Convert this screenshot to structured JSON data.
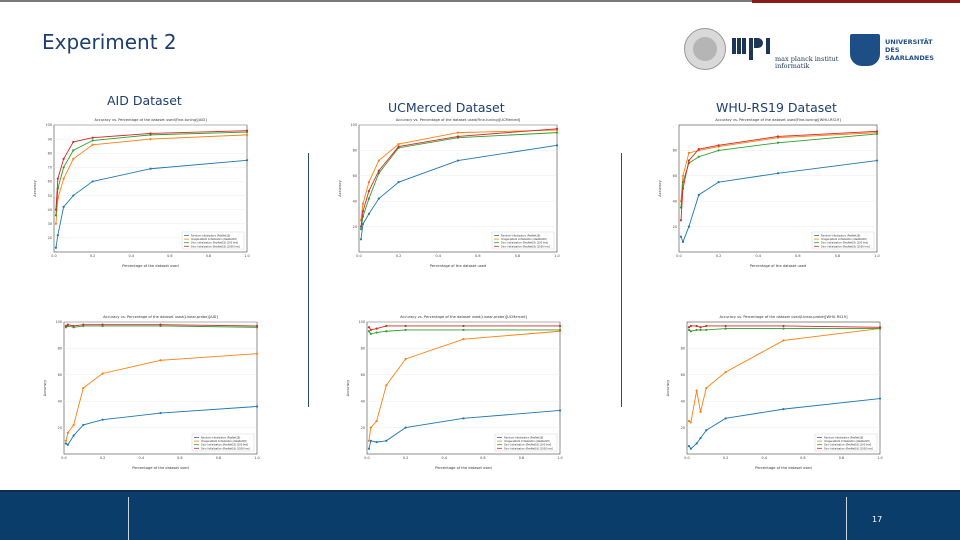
{
  "slide": {
    "title": "Experiment 2",
    "page_number": "17"
  },
  "logos": {
    "mpi_text_1": "max planck institut",
    "mpi_text_2": "informatik",
    "uds_line1": "UNIVERSITÄT",
    "uds_line2": "DES",
    "uds_line3": "SAARLANDES"
  },
  "datasets": {
    "aid": "AID Dataset",
    "ucm": "UCMerced Dataset",
    "whu": "WHU-RS19 Dataset"
  },
  "colors": {
    "random": "#1f77b4",
    "imagenet": "#ff7f0e",
    "dino100": "#2ca02c",
    "dino1000": "#d62728",
    "footer": "#0b3d6b",
    "title": "#1d3f6e"
  },
  "chart_data": [
    {
      "type": "line",
      "title": "Accuracy vs. Percentage of the dataset used(Fine-tuning)[AID]",
      "xlabel": "Percentage of the dataset used",
      "ylabel": "Accuracy",
      "xlim": [
        0,
        1.0
      ],
      "ylim": [
        10,
        100
      ],
      "xticks": [
        "0.0",
        "0.2",
        "0.4",
        "0.6",
        "0.8",
        "1.0"
      ],
      "yticks": [
        "20",
        "30",
        "40",
        "50",
        "60",
        "70",
        "80",
        "90",
        "100"
      ],
      "x": [
        0.01,
        0.02,
        0.05,
        0.1,
        0.2,
        0.5,
        1.0
      ],
      "series": [
        {
          "name": "Random Initialization (ResNet18)",
          "values": [
            13,
            22,
            42,
            50,
            60,
            69,
            75
          ]
        },
        {
          "name": "ImageneNet1 Initialization (ResNet18)",
          "values": [
            30,
            48,
            62,
            76,
            86,
            90,
            93
          ]
        },
        {
          "name": "Dino Initialization (ResNet18) [100 Ims]",
          "values": [
            36,
            55,
            70,
            82,
            89,
            93,
            95
          ]
        },
        {
          "name": "Dino Initialization (ResNet18) [1000 Ims]",
          "values": [
            40,
            62,
            76,
            88,
            91,
            94,
            96
          ]
        }
      ]
    },
    {
      "type": "line",
      "title": "Accuracy vs. Percentage of the dataset used(Fine-tuning)[UCMerced]",
      "xlabel": "Percentage of the dataset used",
      "ylabel": "Accuracy",
      "xlim": [
        0,
        1.0
      ],
      "ylim": [
        0,
        100
      ],
      "xticks": [
        "0.0",
        "0.2",
        "0.4",
        "0.6",
        "0.8",
        "1.0"
      ],
      "yticks": [
        "20",
        "40",
        "60",
        "80",
        "100"
      ],
      "x": [
        0.01,
        0.02,
        0.05,
        0.1,
        0.2,
        0.5,
        1.0
      ],
      "series": [
        {
          "name": "Random Initialization (ResNet18)",
          "values": [
            10,
            22,
            30,
            42,
            55,
            72,
            84
          ]
        },
        {
          "name": "ImageneNet1 Initialization (ResNet18)",
          "values": [
            25,
            38,
            55,
            72,
            85,
            94,
            96
          ]
        },
        {
          "name": "Dino Initialization (ResNet18) [100 Ims]",
          "values": [
            18,
            28,
            42,
            62,
            82,
            90,
            94
          ]
        },
        {
          "name": "Dino Initialization (ResNet18) [1000 Ims]",
          "values": [
            20,
            32,
            48,
            64,
            83,
            91,
            97
          ]
        }
      ]
    },
    {
      "type": "line",
      "title": "Accuracy vs. Percentage of the dataset used(Fine-tuning)[WHU-RS19]",
      "xlabel": "Percentage of the dataset used",
      "ylabel": "Accuracy",
      "xlim": [
        0,
        1.0
      ],
      "ylim": [
        0,
        100
      ],
      "xticks": [
        "0.0",
        "0.2",
        "0.4",
        "0.6",
        "0.8",
        "1.0"
      ],
      "yticks": [
        "20",
        "40",
        "60",
        "80"
      ],
      "x": [
        0.01,
        0.02,
        0.05,
        0.1,
        0.2,
        0.5,
        1.0
      ],
      "series": [
        {
          "name": "Random Initialization (ResNet18)",
          "values": [
            12,
            8,
            20,
            45,
            55,
            62,
            72
          ]
        },
        {
          "name": "ImageneNet1 Initialization (ResNet18)",
          "values": [
            40,
            60,
            78,
            80,
            83,
            90,
            94
          ]
        },
        {
          "name": "Dino Initialization (ResNet18) [100 Ims]",
          "values": [
            35,
            55,
            70,
            75,
            80,
            86,
            93
          ]
        },
        {
          "name": "Dino Initialization (ResNet18) [1000 Ims]",
          "values": [
            25,
            50,
            72,
            81,
            84,
            91,
            95
          ]
        }
      ]
    },
    {
      "type": "line",
      "title": "Accuracy vs. Percentage of the dataset used(Linear-probe)[AID]",
      "xlabel": "Percentage of the dataset used",
      "ylabel": "Accuracy",
      "xlim": [
        0,
        1.0
      ],
      "ylim": [
        0,
        100
      ],
      "xticks": [
        "0.0",
        "0.2",
        "0.4",
        "0.6",
        "0.8",
        "1.0"
      ],
      "yticks": [
        "20",
        "40",
        "60",
        "80",
        "100"
      ],
      "x": [
        0.01,
        0.02,
        0.05,
        0.1,
        0.2,
        0.5,
        1.0
      ],
      "series": [
        {
          "name": "Random Initialization (ResNet18)",
          "values": [
            8,
            7,
            14,
            22,
            26,
            31,
            36
          ]
        },
        {
          "name": "ImageneNet1 Initialization (ResNet18)",
          "values": [
            10,
            16,
            22,
            50,
            61,
            71,
            76
          ]
        },
        {
          "name": "Dino Initialization (ResNet18) [100 Ims]",
          "values": [
            96,
            97,
            96,
            97,
            97,
            97,
            96
          ]
        },
        {
          "name": "Dino Initialization (ResNet18) [1000 Ims]",
          "values": [
            97,
            98,
            97,
            98,
            98,
            98,
            97
          ]
        }
      ]
    },
    {
      "type": "line",
      "title": "Accuracy vs. Percentage of the dataset used(Linear-probe)[UCMerced]",
      "xlabel": "Percentage of the dataset used",
      "ylabel": "Accuracy",
      "xlim": [
        0,
        1.0
      ],
      "ylim": [
        0,
        100
      ],
      "xticks": [
        "0.0",
        "0.2",
        "0.4",
        "0.6",
        "0.8",
        "1.0"
      ],
      "yticks": [
        "20",
        "40",
        "60",
        "80",
        "100"
      ],
      "x": [
        0.01,
        0.02,
        0.05,
        0.1,
        0.2,
        0.5,
        1.0
      ],
      "series": [
        {
          "name": "Random Initialization (ResNet18)",
          "values": [
            4,
            10,
            9,
            10,
            20,
            27,
            33
          ]
        },
        {
          "name": "ImageneNet1 Initialization (ResNet18)",
          "values": [
            10,
            20,
            25,
            52,
            72,
            87,
            93
          ]
        },
        {
          "name": "Dino Initialization (ResNet18) [100 Ims]",
          "values": [
            93,
            91,
            92,
            93,
            94,
            94,
            94
          ]
        },
        {
          "name": "Dino Initialization (ResNet18) [1000 Ims]",
          "values": [
            96,
            94,
            95,
            97,
            97,
            97,
            97
          ]
        }
      ]
    },
    {
      "type": "line",
      "title": "Accuracy vs. Percentage of the dataset used(Linear-probe)[WHU-RS19]",
      "xlabel": "Percentage of the dataset used",
      "ylabel": "Accuracy",
      "xlim": [
        0,
        1.0
      ],
      "ylim": [
        0,
        100
      ],
      "xticks": [
        "0.0",
        "0.2",
        "0.4",
        "0.6",
        "0.8",
        "1.0"
      ],
      "yticks": [
        "20",
        "40",
        "60",
        "80"
      ],
      "x": [
        0.01,
        0.02,
        0.05,
        0.07,
        0.1,
        0.2,
        0.5,
        1.0
      ],
      "series": [
        {
          "name": "Random Initialization (ResNet18)",
          "values": [
            6,
            4,
            8,
            12,
            18,
            27,
            34,
            42
          ]
        },
        {
          "name": "ImageneNet1 Initialization (ResNet18)",
          "values": [
            25,
            24,
            48,
            32,
            50,
            62,
            86,
            95
          ]
        },
        {
          "name": "Dino Initialization (ResNet18) [100 Ims]",
          "values": [
            94,
            93,
            94,
            94,
            94,
            95,
            95,
            95
          ]
        },
        {
          "name": "Dino Initialization (ResNet18) [1000 Ims]",
          "values": [
            96,
            97,
            97,
            96,
            97,
            97,
            97,
            96
          ]
        }
      ]
    }
  ]
}
